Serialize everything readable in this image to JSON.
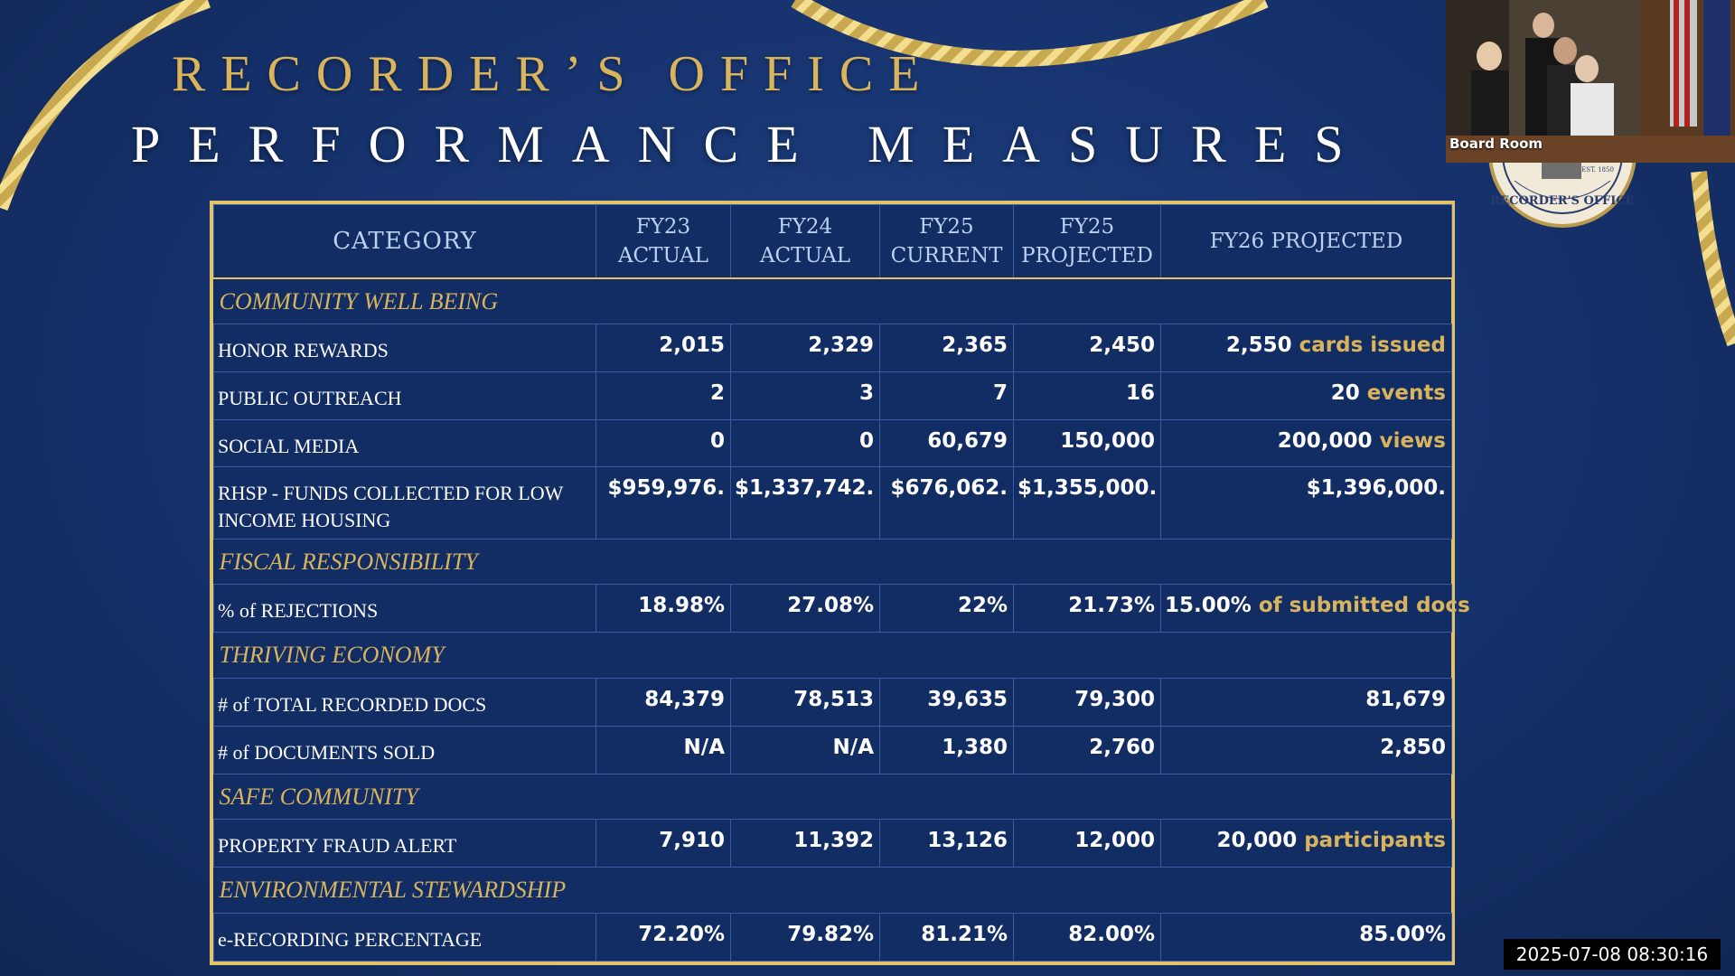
{
  "slide": {
    "title_line1": "RECORDER’S OFFICE",
    "title_line2": "PERFORMANCE MEASURES"
  },
  "table": {
    "headers": [
      {
        "line1": "CATEGORY",
        "line2": ""
      },
      {
        "line1": "FY23",
        "line2": "ACTUAL"
      },
      {
        "line1": "FY24",
        "line2": "ACTUAL"
      },
      {
        "line1": "FY25",
        "line2": "CURRENT"
      },
      {
        "line1": "FY25",
        "line2": "PROJECTED"
      },
      {
        "line1": "FY26 PROJECTED",
        "line2": ""
      }
    ],
    "sections": [
      {
        "name": "COMMUNITY WELL BEING",
        "rows": [
          {
            "label": "HONOR REWARDS",
            "fy23": "2,015",
            "fy24": "2,329",
            "fy25c": "2,365",
            "fy25p": "2,450",
            "fy26": "2,550",
            "unit": "cards issued"
          },
          {
            "label": "PUBLIC OUTREACH",
            "fy23": "2",
            "fy24": "3",
            "fy25c": "7",
            "fy25p": "16",
            "fy26": "20",
            "unit": "events"
          },
          {
            "label": "SOCIAL MEDIA",
            "fy23": "0",
            "fy24": "0",
            "fy25c": "60,679",
            "fy25p": "150,000",
            "fy26": "200,000",
            "unit": "views"
          },
          {
            "label": "RHSP - FUNDS COLLECTED FOR LOW INCOME HOUSING",
            "fy23": "$959,976.",
            "fy24": "$1,337,742.",
            "fy25c": "$676,062.",
            "fy25p": "$1,355,000.",
            "fy26": "$1,396,000.",
            "unit": ""
          }
        ]
      },
      {
        "name": "FISCAL RESPONSIBILITY",
        "rows": [
          {
            "label": "% of  REJECTIONS",
            "fy23": "18.98%",
            "fy24": "27.08%",
            "fy25c": "22%",
            "fy25p": "21.73%",
            "fy26": "15.00%",
            "unit": "of submitted docs"
          }
        ]
      },
      {
        "name": "THRIVING ECONOMY",
        "rows": [
          {
            "label": "# of  TOTAL RECORDED DOCS",
            "fy23": "84,379",
            "fy24": "78,513",
            "fy25c": "39,635",
            "fy25p": "79,300",
            "fy26": "81,679",
            "unit": ""
          },
          {
            "label": "# of  DOCUMENTS SOLD",
            "fy23": "N/A",
            "fy24": "N/A",
            "fy25c": "1,380",
            "fy25p": "2,760",
            "fy26": "2,850",
            "unit": ""
          }
        ]
      },
      {
        "name": "SAFE COMMUNITY",
        "rows": [
          {
            "label": "PROPERTY FRAUD ALERT",
            "fy23": "7,910",
            "fy24": "11,392",
            "fy25c": "13,126",
            "fy25p": "12,000",
            "fy26": "20,000",
            "unit": "participants"
          }
        ]
      },
      {
        "name": "ENVIRONMENTAL STEWARDSHIP",
        "rows": [
          {
            "label": "e-RECORDING PERCENTAGE",
            "fy23": "72.20%",
            "fy24": "79.82%",
            "fy25c": "81.21%",
            "fy25p": "82.00%",
            "fy26": "85.00%",
            "unit": ""
          }
        ]
      }
    ]
  },
  "camera": {
    "label": "Board Room"
  },
  "seal": {
    "text": "RECORDER'S OFFICE",
    "est": "EST. 1850"
  },
  "timestamp": "2025-07-08  08:30:16",
  "colors": {
    "gold": "#d9b45c",
    "navy": "#173470",
    "border_gold": "#e2c36a"
  }
}
